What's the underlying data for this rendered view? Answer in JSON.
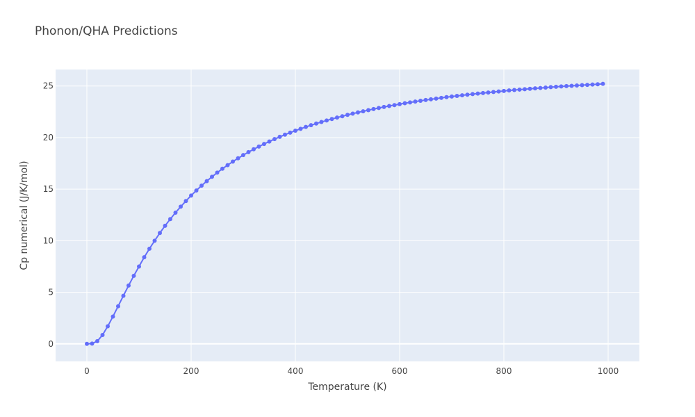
{
  "chart_data": {
    "type": "line",
    "title": "Phonon/QHA Predictions",
    "xlabel": "Temperature (K)",
    "ylabel": "Cp numerical (J/K/mol)",
    "xlim": [
      -60,
      1060
    ],
    "ylim": [
      -1.7,
      26.6
    ],
    "x_ticks": [
      0,
      200,
      400,
      600,
      800,
      1000
    ],
    "y_ticks": [
      0,
      5,
      10,
      15,
      20,
      25
    ],
    "grid": true,
    "legend": "none",
    "series": [
      {
        "color": "#636efa",
        "mode": "lines+markers",
        "x": [
          0,
          10,
          20,
          30,
          40,
          50,
          60,
          70,
          80,
          90,
          100,
          110,
          120,
          130,
          140,
          150,
          160,
          170,
          180,
          190,
          200,
          210,
          220,
          230,
          240,
          250,
          260,
          270,
          280,
          290,
          300,
          310,
          320,
          330,
          340,
          350,
          360,
          370,
          380,
          390,
          400,
          410,
          420,
          430,
          440,
          450,
          460,
          470,
          480,
          490,
          500,
          510,
          520,
          530,
          540,
          550,
          560,
          570,
          580,
          590,
          600,
          610,
          620,
          630,
          640,
          650,
          660,
          670,
          680,
          690,
          700,
          710,
          720,
          730,
          740,
          750,
          760,
          770,
          780,
          790,
          800,
          810,
          820,
          830,
          840,
          850,
          860,
          870,
          880,
          890,
          900,
          910,
          920,
          930,
          940,
          950,
          960,
          970,
          980,
          990
        ],
        "y": [
          0,
          0.03,
          0.26,
          0.86,
          1.7,
          2.65,
          3.65,
          4.66,
          5.65,
          6.6,
          7.5,
          8.4,
          9.22,
          10,
          10.75,
          11.45,
          12.1,
          12.72,
          13.3,
          13.85,
          14.38,
          14.87,
          15.34,
          15.78,
          16.2,
          16.6,
          16.98,
          17.33,
          17.67,
          17.99,
          18.3,
          18.59,
          18.87,
          19.13,
          19.38,
          19.62,
          19.85,
          20.07,
          20.28,
          20.48,
          20.67,
          20.85,
          21.03,
          21.2,
          21.36,
          21.51,
          21.66,
          21.8,
          21.94,
          22.07,
          22.2,
          22.32,
          22.44,
          22.55,
          22.66,
          22.77,
          22.87,
          22.97,
          23.06,
          23.15,
          23.24,
          23.33,
          23.41,
          23.49,
          23.57,
          23.64,
          23.71,
          23.78,
          23.85,
          23.92,
          23.98,
          24.04,
          24.1,
          24.16,
          24.22,
          24.27,
          24.32,
          24.37,
          24.42,
          24.47,
          24.52,
          24.57,
          24.61,
          24.65,
          24.69,
          24.73,
          24.77,
          24.81,
          24.85,
          24.89,
          24.92,
          24.96,
          24.99,
          25.02,
          25.05,
          25.08,
          25.11,
          25.14,
          25.17,
          25.21
        ]
      }
    ]
  },
  "colors": {
    "plot_background": "#e5ecf6",
    "grid": "#ffffff",
    "series": "#636efa"
  }
}
